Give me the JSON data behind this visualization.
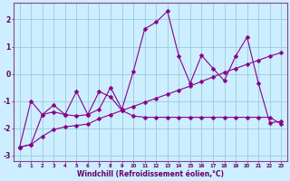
{
  "xlabel": "Windchill (Refroidissement éolien,°C)",
  "background_color": "#cceeff",
  "grid_color": "#99ccdd",
  "line_color": "#880088",
  "xlim": [
    -0.5,
    23.5
  ],
  "ylim": [
    -3.2,
    2.6
  ],
  "x_ticks": [
    0,
    1,
    2,
    3,
    4,
    5,
    6,
    7,
    8,
    9,
    10,
    11,
    12,
    13,
    14,
    15,
    16,
    17,
    18,
    19,
    20,
    21,
    22,
    23
  ],
  "y_ticks": [
    -3,
    -2,
    -1,
    0,
    1,
    2
  ],
  "series1_x": [
    0,
    1,
    2,
    3,
    4,
    5,
    6,
    7,
    8,
    9,
    10,
    11,
    12,
    13,
    14,
    15,
    16,
    17,
    18,
    19,
    20,
    21,
    22,
    23
  ],
  "series1_y": [
    -2.7,
    -1.0,
    -1.5,
    -1.4,
    -1.5,
    -1.55,
    -1.5,
    -0.65,
    -0.85,
    -1.35,
    -1.55,
    -1.6,
    -1.6,
    -1.6,
    -1.6,
    -1.6,
    -1.6,
    -1.6,
    -1.6,
    -1.6,
    -1.6,
    -1.6,
    -1.6,
    -1.85
  ],
  "series2_x": [
    0,
    1,
    2,
    3,
    4,
    5,
    6,
    7,
    8,
    9,
    10,
    11,
    12,
    13,
    14,
    15,
    16,
    17,
    18,
    19,
    20,
    21,
    22,
    23
  ],
  "series2_y": [
    -2.7,
    -2.6,
    -2.3,
    -2.05,
    -1.95,
    -1.9,
    -1.85,
    -1.65,
    -1.5,
    -1.35,
    -1.2,
    -1.05,
    -0.9,
    -0.75,
    -0.6,
    -0.45,
    -0.28,
    -0.12,
    0.05,
    0.2,
    0.35,
    0.5,
    0.65,
    0.78
  ],
  "series3_x": [
    0,
    1,
    2,
    3,
    4,
    5,
    6,
    7,
    8,
    9,
    10,
    11,
    12,
    13,
    14,
    15,
    16,
    17,
    18,
    19,
    20,
    21,
    22,
    23
  ],
  "series3_y": [
    -2.7,
    -2.6,
    -1.5,
    -1.15,
    -1.5,
    -0.65,
    -1.5,
    -1.3,
    -0.5,
    -1.3,
    0.08,
    1.65,
    1.9,
    2.3,
    0.65,
    -0.35,
    0.68,
    0.2,
    -0.25,
    0.65,
    1.35,
    -0.35,
    -1.8,
    -1.75
  ]
}
